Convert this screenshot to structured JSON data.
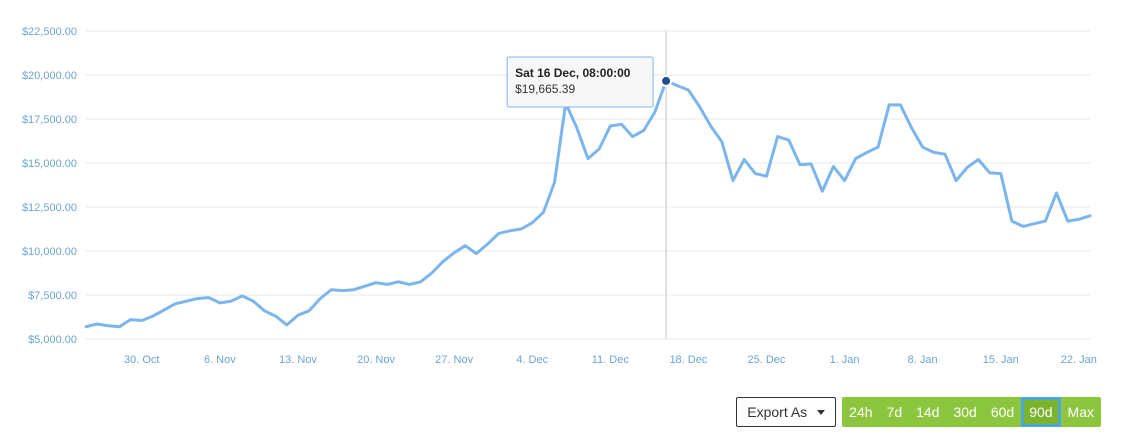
{
  "colors": {
    "line": "#7cb5ec",
    "axis_text": "#6aa5cf",
    "button_green": "#8cc63f",
    "active_border": "#4ea6dc"
  },
  "controls": {
    "export_label": "Export As",
    "range_buttons": [
      "24h",
      "7d",
      "14d",
      "30d",
      "60d",
      "90d",
      "Max"
    ],
    "active_range": "90d"
  },
  "chart_data": {
    "type": "line",
    "ylim": [
      5000,
      22500
    ],
    "y_ticks": [
      "$5,000.00",
      "$7,500.00",
      "$10,000.00",
      "$12,500.00",
      "$15,000.00",
      "$17,500.00",
      "$20,000.00",
      "$22,500.00"
    ],
    "x_ticks": [
      "30. Oct",
      "6. Nov",
      "13. Nov",
      "20. Nov",
      "27. Nov",
      "4. Dec",
      "11. Dec",
      "18. Dec",
      "25. Dec",
      "1. Jan",
      "8. Jan",
      "15. Jan",
      "22. Jan"
    ],
    "x_start": "2017-10-25",
    "grid": true,
    "series": [
      {
        "values": [
          5700,
          5850,
          5750,
          5700,
          6100,
          6050,
          6300,
          6650,
          7000,
          7150,
          7300,
          7350,
          7050,
          7150,
          7450,
          7150,
          6600,
          6300,
          5800,
          6350,
          6600,
          7300,
          7800,
          7750,
          7800,
          8000,
          8200,
          8100,
          8250,
          8100,
          8250,
          8750,
          9400,
          9900,
          10300,
          9850,
          10400,
          11000,
          11150,
          11250,
          11600,
          12200,
          13900,
          18400,
          17000,
          15250,
          15800,
          17100,
          17200,
          16500,
          16850,
          17900,
          19665,
          19400,
          19150,
          18200,
          17100,
          16200,
          14000,
          15200,
          14400,
          14250,
          16500,
          16300,
          14900,
          14950,
          13400,
          14800,
          14000,
          15250,
          15600,
          15900,
          18300,
          18300,
          17000,
          15900,
          15600,
          15500,
          14000,
          14750,
          15200,
          14450,
          14400,
          11700,
          11400,
          11550,
          11700,
          13300,
          11700,
          11800,
          12000
        ]
      }
    ],
    "tooltip": {
      "date_label": "Sat 16 Dec, 08:00:00",
      "value_label": "$19,665.39",
      "index": 52
    }
  }
}
